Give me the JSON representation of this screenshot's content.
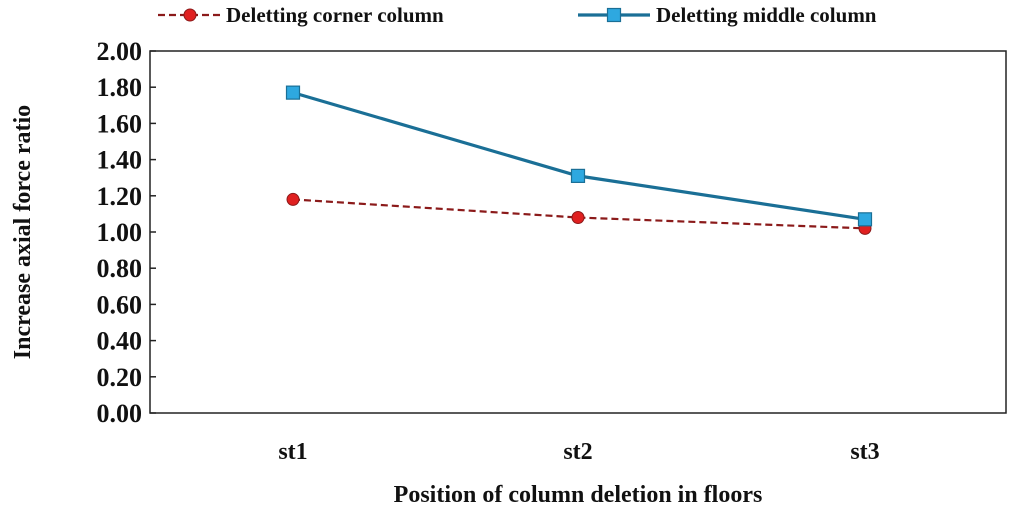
{
  "chart_data": {
    "type": "line",
    "categories": [
      "st1",
      "st2",
      "st3"
    ],
    "series": [
      {
        "name": "Deletting corner column",
        "values": [
          1.18,
          1.08,
          1.02
        ],
        "color": "#8b1a1a",
        "marker_color": "#e02020",
        "line_style": "dashed",
        "marker": "circle"
      },
      {
        "name": "Deletting middle column",
        "values": [
          1.77,
          1.31,
          1.07
        ],
        "color": "#1a6f96",
        "marker_color": "#2ea8e0",
        "line_style": "solid",
        "marker": "square"
      }
    ],
    "xlabel": "Position of column deletion in floors",
    "ylabel": "Increase axial force ratio",
    "ylim": [
      0,
      2
    ],
    "yticks": [
      "0.00",
      "0.20",
      "0.40",
      "0.60",
      "0.80",
      "1.00",
      "1.20",
      "1.40",
      "1.60",
      "1.80",
      "2.00"
    ],
    "grid": false,
    "legend_position": "top"
  }
}
